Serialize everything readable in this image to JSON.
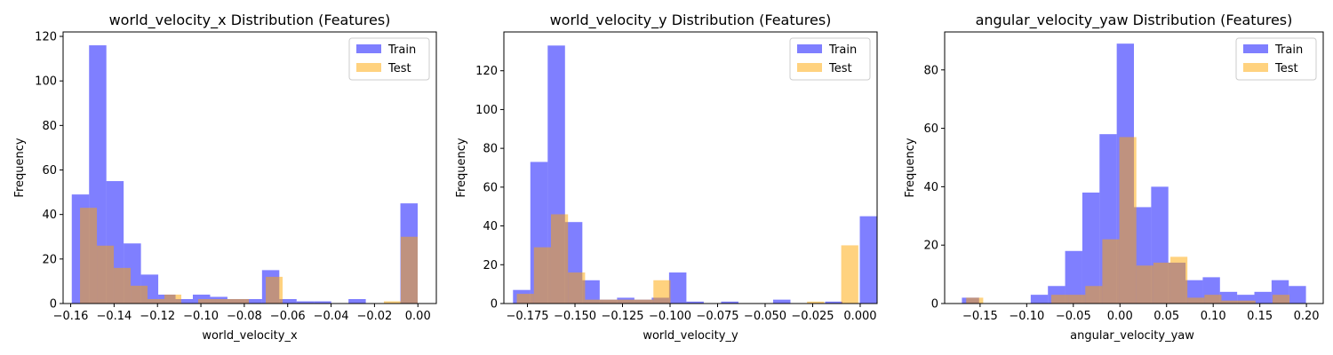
{
  "chart_data": [
    {
      "type": "histogram",
      "title": "world_velocity_x Distribution (Features)",
      "xlabel": "world_velocity_x",
      "ylabel": "Frequency",
      "xlim": [
        -0.1635,
        0.0085
      ],
      "ylim": [
        0,
        122
      ],
      "xticks": [
        -0.16,
        -0.14,
        -0.12,
        -0.1,
        -0.08,
        -0.06,
        -0.04,
        -0.02,
        0.0
      ],
      "xtick_labels": [
        "−0.16",
        "−0.14",
        "−0.12",
        "−0.10",
        "−0.08",
        "−0.06",
        "−0.04",
        "−0.02",
        "0.00"
      ],
      "yticks": [
        0,
        20,
        40,
        60,
        80,
        100,
        120
      ],
      "legend": {
        "position": "top-right"
      },
      "series": [
        {
          "name": "Train",
          "color": "#0000ff",
          "opacity": 0.5,
          "bin_start": -0.1595,
          "bin_width": 0.00797,
          "counts": [
            49,
            116,
            55,
            27,
            13,
            4,
            2,
            4,
            3,
            2,
            2,
            15,
            2,
            1,
            1,
            0,
            2,
            0,
            0,
            45
          ]
        },
        {
          "name": "Test",
          "color": "#ffa500",
          "opacity": 0.5,
          "bin_start": -0.1557,
          "bin_width": 0.00778,
          "counts": [
            43,
            26,
            16,
            8,
            2,
            4,
            0,
            2,
            2,
            2,
            0,
            12,
            0,
            0,
            0,
            0,
            0,
            0,
            1,
            30
          ]
        }
      ]
    },
    {
      "type": "histogram",
      "title": "world_velocity_y Distribution (Features)",
      "xlabel": "world_velocity_y",
      "ylabel": "Frequency",
      "xlim": [
        -0.1874,
        0.0089
      ],
      "ylim": [
        0,
        140
      ],
      "xticks": [
        -0.175,
        -0.15,
        -0.125,
        -0.1,
        -0.075,
        -0.05,
        -0.025,
        0.0
      ],
      "xtick_labels": [
        "−0.175",
        "−0.150",
        "−0.125",
        "−0.100",
        "−0.075",
        "−0.050",
        "−0.025",
        "0.000"
      ],
      "yticks": [
        0,
        20,
        40,
        60,
        80,
        100,
        120
      ],
      "legend": {
        "position": "top-right"
      },
      "series": [
        {
          "name": "Train",
          "color": "#0000ff",
          "opacity": 0.5,
          "bin_start": -0.1826,
          "bin_width": 0.00912,
          "counts": [
            7,
            73,
            133,
            42,
            12,
            2,
            3,
            2,
            3,
            16,
            1,
            0,
            1,
            0,
            0,
            2,
            0,
            0,
            1,
            0,
            45
          ]
        },
        {
          "name": "Test",
          "color": "#ffa500",
          "opacity": 0.5,
          "bin_start": -0.1806,
          "bin_width": 0.00898,
          "counts": [
            5,
            29,
            46,
            16,
            2,
            2,
            2,
            2,
            12,
            0,
            0,
            0,
            0,
            0,
            0,
            0,
            0,
            1,
            0,
            30
          ]
        }
      ]
    },
    {
      "type": "histogram",
      "title": "angular_velocity_yaw Distribution (Features)",
      "xlabel": "angular_velocity_yaw",
      "ylabel": "Frequency",
      "xlim": [
        -0.188,
        0.218
      ],
      "ylim": [
        0,
        93
      ],
      "xticks": [
        -0.15,
        -0.1,
        -0.05,
        0.0,
        0.05,
        0.1,
        0.15,
        0.2
      ],
      "xtick_labels": [
        "−0.15",
        "−0.10",
        "−0.05",
        "0.00",
        "0.05",
        "0.10",
        "0.15",
        "0.20"
      ],
      "yticks": [
        0,
        20,
        40,
        60,
        80
      ],
      "legend": {
        "position": "top-right"
      },
      "series": [
        {
          "name": "Train",
          "color": "#0000ff",
          "opacity": 0.5,
          "bin_start": -0.1695,
          "bin_width": 0.01845,
          "counts": [
            2,
            0,
            0,
            0,
            3,
            6,
            18,
            38,
            58,
            89,
            33,
            40,
            14,
            8,
            9,
            4,
            3,
            4,
            8,
            6
          ]
        },
        {
          "name": "Test",
          "color": "#ffa500",
          "opacity": 0.5,
          "bin_start": -0.1649,
          "bin_width": 0.01825,
          "counts": [
            2,
            0,
            0,
            0,
            0,
            3,
            3,
            6,
            22,
            57,
            13,
            14,
            16,
            2,
            3,
            1,
            1,
            0,
            3,
            0
          ]
        }
      ]
    }
  ]
}
